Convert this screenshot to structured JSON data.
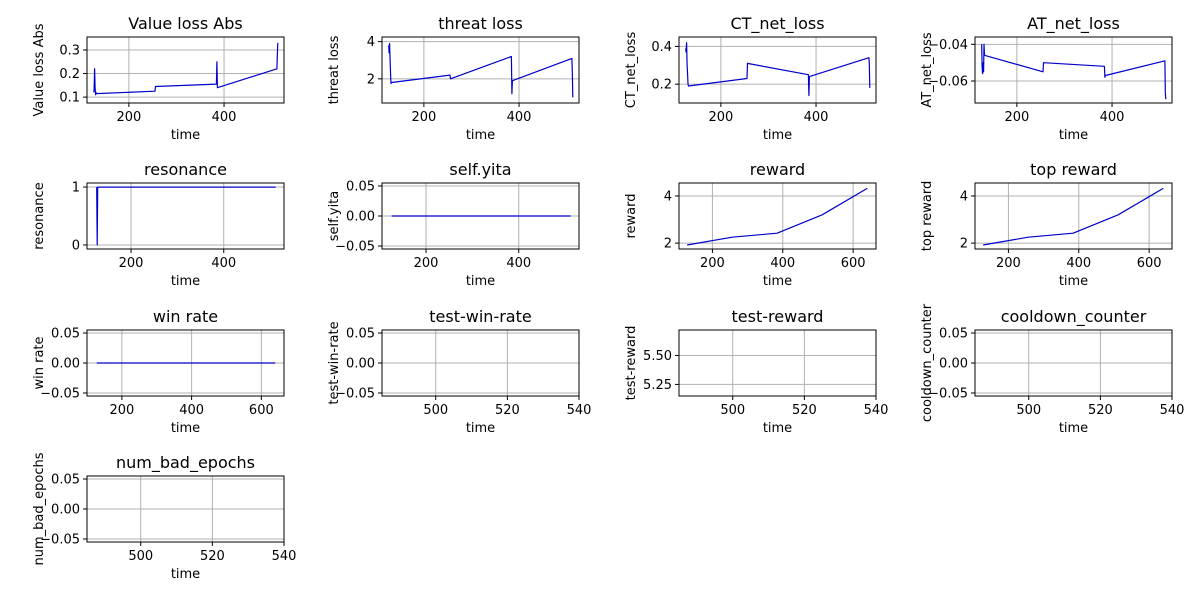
{
  "figure": {
    "line_color": "#0000cc",
    "grid": true
  },
  "chart_data": [
    {
      "type": "line",
      "title": "Value loss Abs",
      "xlabel": "time",
      "ylabel": "Value loss Abs",
      "xlim": [
        112,
        526
      ],
      "ylim": [
        0.075,
        0.355
      ],
      "xticks": [
        200,
        400
      ],
      "yticks": [
        0.1,
        0.2,
        0.3
      ],
      "x": [
        126,
        127,
        128,
        129,
        130,
        131,
        132,
        255,
        256,
        384,
        385,
        386,
        511,
        512,
        513
      ],
      "y": [
        0.12,
        0.13,
        0.22,
        0.14,
        0.11,
        0.12,
        0.115,
        0.125,
        0.145,
        0.155,
        0.25,
        0.14,
        0.22,
        0.275,
        0.33
      ]
    },
    {
      "type": "line",
      "title": "threat loss",
      "xlabel": "time",
      "ylabel": "threat loss",
      "xlim": [
        112,
        526
      ],
      "ylim": [
        0.7,
        4.25
      ],
      "xticks": [
        200,
        400
      ],
      "yticks": [
        2,
        4
      ],
      "x": [
        126,
        127,
        128,
        129,
        130,
        131,
        132,
        255,
        256,
        384,
        385,
        386,
        511,
        512,
        513
      ],
      "y": [
        3.8,
        3.4,
        3.9,
        3.0,
        2.2,
        1.75,
        1.8,
        2.2,
        2.0,
        3.2,
        1.2,
        1.9,
        3.1,
        2.4,
        1.0
      ]
    },
    {
      "type": "line",
      "title": "CT_net_loss",
      "xlabel": "time",
      "ylabel": "CT_net_loss",
      "xlim": [
        112,
        526
      ],
      "ylim": [
        0.1,
        0.45
      ],
      "xticks": [
        200,
        400
      ],
      "yticks": [
        0.2,
        0.4
      ],
      "x": [
        126,
        127,
        128,
        129,
        130,
        131,
        132,
        255,
        256,
        384,
        385,
        386,
        511,
        512,
        513
      ],
      "y": [
        0.39,
        0.37,
        0.42,
        0.3,
        0.25,
        0.2,
        0.19,
        0.23,
        0.31,
        0.25,
        0.14,
        0.24,
        0.34,
        0.31,
        0.18
      ]
    },
    {
      "type": "line",
      "title": "AT_net_loss",
      "xlabel": "time",
      "ylabel": "AT_net_loss",
      "xlim": [
        112,
        526
      ],
      "ylim": [
        -0.072,
        -0.036
      ],
      "xticks": [
        200,
        400
      ],
      "yticks": [
        -0.06,
        -0.04
      ],
      "x": [
        126,
        127,
        128,
        129,
        130,
        131,
        132,
        255,
        256,
        384,
        385,
        386,
        511,
        512,
        513
      ],
      "y": [
        -0.04,
        -0.052,
        -0.056,
        -0.05,
        -0.055,
        -0.04,
        -0.046,
        -0.055,
        -0.05,
        -0.052,
        -0.058,
        -0.057,
        -0.049,
        -0.066,
        -0.07
      ]
    },
    {
      "type": "line",
      "title": "resonance",
      "xlabel": "time",
      "ylabel": "resonance",
      "xlim": [
        105,
        530
      ],
      "ylim": [
        -0.07,
        1.07
      ],
      "xticks": [
        200,
        400
      ],
      "yticks": [
        0,
        1
      ],
      "x": [
        126,
        127,
        128,
        129,
        512
      ],
      "y": [
        1.0,
        0.0,
        1.0,
        1.0,
        1.0
      ]
    },
    {
      "type": "line",
      "title": "self.yita",
      "xlabel": "time",
      "ylabel": "self.yita",
      "xlim": [
        105,
        530
      ],
      "ylim": [
        -0.055,
        0.055
      ],
      "xticks": [
        200,
        400
      ],
      "yticks": [
        -0.05,
        0.0,
        0.05
      ],
      "x": [
        126,
        512
      ],
      "y": [
        0.0,
        0.0
      ]
    },
    {
      "type": "line",
      "title": "reward",
      "xlabel": "time",
      "ylabel": "reward",
      "xlim": [
        105,
        665
      ],
      "ylim": [
        1.75,
        4.55
      ],
      "xticks": [
        200,
        400,
        600
      ],
      "yticks": [
        2,
        4
      ],
      "x": [
        128,
        256,
        384,
        512,
        640
      ],
      "y": [
        1.92,
        2.25,
        2.42,
        3.2,
        4.32
      ]
    },
    {
      "type": "line",
      "title": "top reward",
      "xlabel": "time",
      "ylabel": "top reward",
      "xlim": [
        105,
        665
      ],
      "ylim": [
        1.75,
        4.55
      ],
      "xticks": [
        200,
        400,
        600
      ],
      "yticks": [
        2,
        4
      ],
      "x": [
        128,
        256,
        384,
        512,
        640
      ],
      "y": [
        1.92,
        2.25,
        2.42,
        3.2,
        4.32
      ]
    },
    {
      "type": "line",
      "title": "win rate",
      "xlabel": "time",
      "ylabel": "win rate",
      "xlim": [
        100,
        665
      ],
      "ylim": [
        -0.055,
        0.055
      ],
      "xticks": [
        200,
        400,
        600
      ],
      "yticks": [
        -0.05,
        0.0,
        0.05
      ],
      "x": [
        128,
        640
      ],
      "y": [
        0.0,
        0.0
      ]
    },
    {
      "type": "line",
      "title": "test-win-rate",
      "xlabel": "time",
      "ylabel": "test-win-rate",
      "xlim": [
        485,
        540
      ],
      "ylim": [
        -0.055,
        0.055
      ],
      "xticks": [
        500,
        520,
        540
      ],
      "yticks": [
        -0.05,
        0.0,
        0.05
      ],
      "x": [],
      "y": []
    },
    {
      "type": "line",
      "title": "test-reward",
      "xlabel": "time",
      "ylabel": "test-reward",
      "xlim": [
        485,
        540
      ],
      "ylim": [
        5.15,
        5.72
      ],
      "xticks": [
        500,
        520,
        540
      ],
      "yticks": [
        5.25,
        5.5
      ],
      "x": [],
      "y": []
    },
    {
      "type": "line",
      "title": "cooldown_counter",
      "xlabel": "time",
      "ylabel": "cooldown_counter",
      "xlim": [
        485,
        540
      ],
      "ylim": [
        -0.055,
        0.055
      ],
      "xticks": [
        500,
        520,
        540
      ],
      "yticks": [
        -0.05,
        0.0,
        0.05
      ],
      "x": [],
      "y": []
    },
    {
      "type": "line",
      "title": "num_bad_epochs",
      "xlabel": "time",
      "ylabel": "num_bad_epochs",
      "xlim": [
        485,
        540
      ],
      "ylim": [
        -0.055,
        0.055
      ],
      "xticks": [
        500,
        520,
        540
      ],
      "yticks": [
        -0.05,
        0.0,
        0.05
      ],
      "x": [],
      "y": []
    }
  ]
}
